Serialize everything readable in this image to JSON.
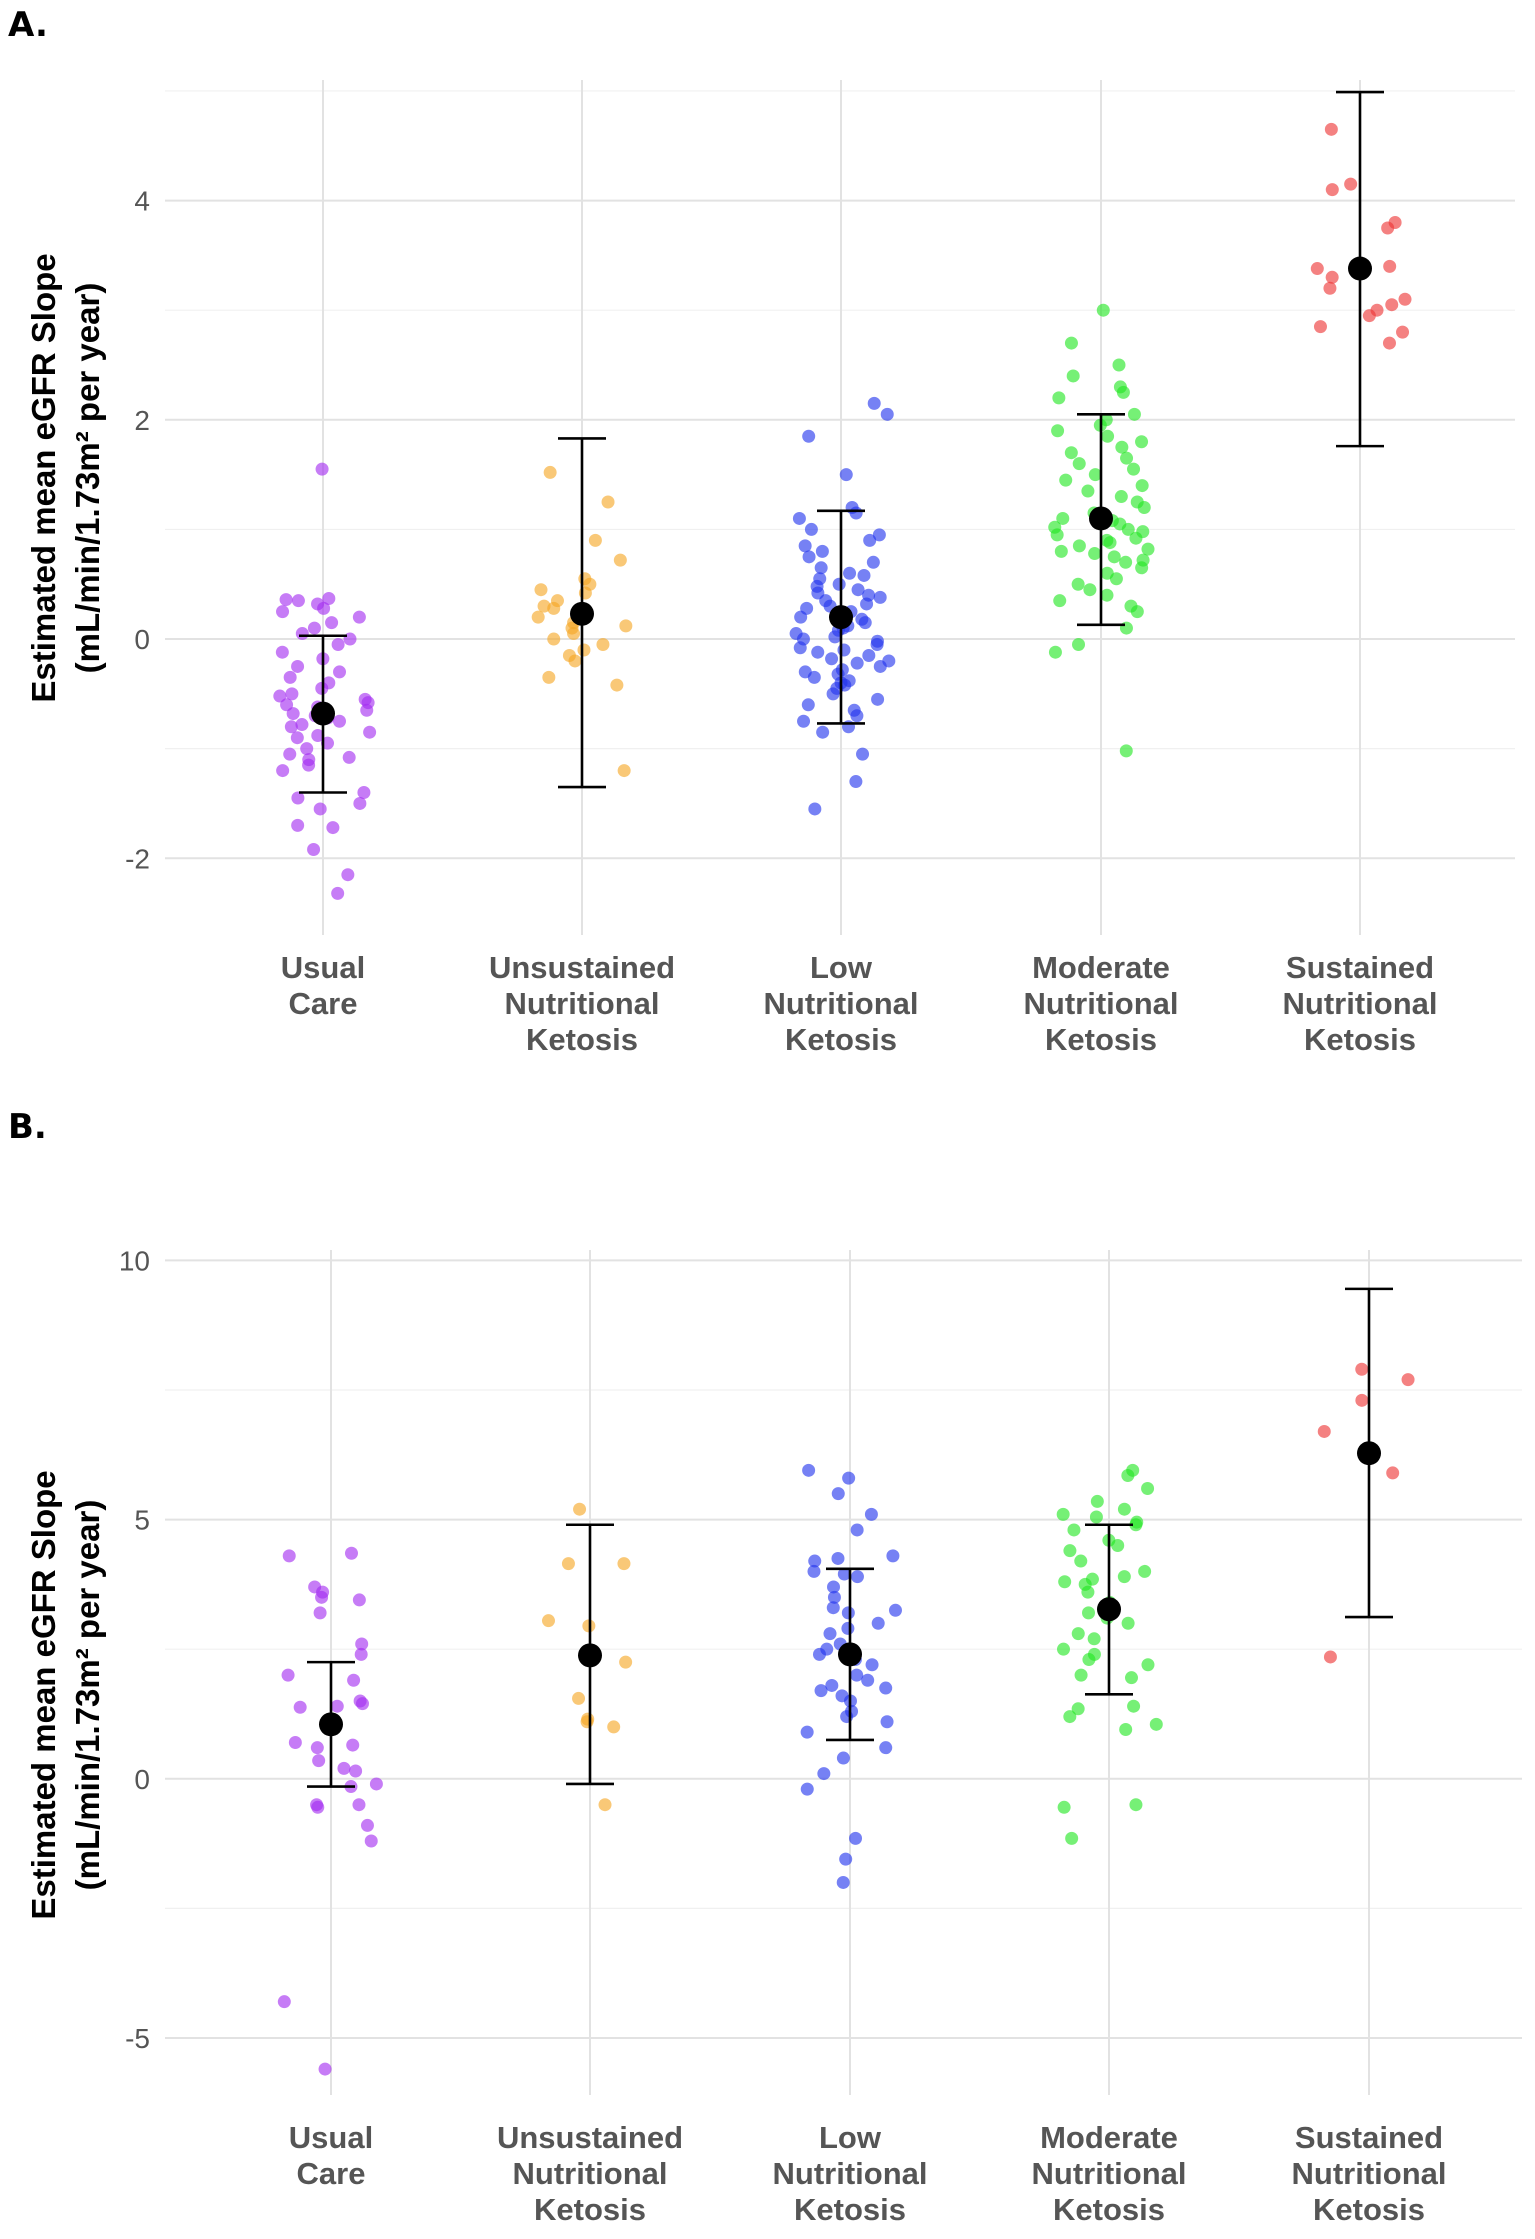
{
  "chart_data": [
    {
      "panel_label": "A.",
      "type": "scatter",
      "ylabel_line1": "Estimated mean eGFR Slope",
      "ylabel_line2": "(mL/min/1.73m² per year)",
      "ylim": [
        -2.7,
        5.1
      ],
      "yticks": [
        -2,
        0,
        2,
        4
      ],
      "ytick_labels": [
        "-2",
        "0",
        "2",
        "4"
      ],
      "categories": [
        {
          "lines": [
            "Usual",
            "Care"
          ],
          "color": "#a32cf0",
          "mean": -0.68,
          "ci": [
            -1.4,
            0.03
          ],
          "points": [
            1.55,
            0.37,
            0.36,
            0.35,
            0.32,
            0.28,
            0.25,
            0.2,
            0.15,
            0.1,
            0.05,
            0.0,
            -0.05,
            -0.12,
            -0.18,
            -0.25,
            -0.3,
            -0.35,
            -0.4,
            -0.45,
            -0.5,
            -0.52,
            -0.55,
            -0.58,
            -0.6,
            -0.62,
            -0.65,
            -0.68,
            -0.7,
            -0.72,
            -0.75,
            -0.78,
            -0.8,
            -0.85,
            -0.88,
            -0.9,
            -0.95,
            -1.0,
            -1.05,
            -1.08,
            -1.1,
            -1.15,
            -1.2,
            -1.4,
            -1.45,
            -1.5,
            -1.55,
            -1.7,
            -1.72,
            -1.92,
            -2.15,
            -2.32
          ]
        },
        {
          "lines": [
            "Unsustained",
            "Nutritional",
            "Ketosis"
          ],
          "color": "#f5a623",
          "mean": 0.23,
          "ci": [
            -1.35,
            1.83
          ],
          "points": [
            1.52,
            1.25,
            0.9,
            0.72,
            0.55,
            0.5,
            0.45,
            0.42,
            0.35,
            0.3,
            0.28,
            0.2,
            0.15,
            0.12,
            0.1,
            0.05,
            0.0,
            -0.05,
            -0.1,
            -0.15,
            -0.2,
            -0.35,
            -0.42,
            -1.2
          ]
        },
        {
          "lines": [
            "Low",
            "Nutritional",
            "Ketosis"
          ],
          "color": "#2233ee",
          "mean": 0.2,
          "ci": [
            -0.77,
            1.17
          ],
          "points": [
            2.15,
            2.05,
            1.85,
            1.5,
            1.2,
            1.15,
            1.1,
            1.0,
            0.95,
            0.9,
            0.85,
            0.8,
            0.75,
            0.7,
            0.65,
            0.6,
            0.58,
            0.55,
            0.5,
            0.48,
            0.45,
            0.42,
            0.4,
            0.38,
            0.35,
            0.32,
            0.3,
            0.28,
            0.25,
            0.22,
            0.2,
            0.18,
            0.15,
            0.12,
            0.1,
            0.08,
            0.05,
            0.02,
            0.0,
            -0.02,
            -0.05,
            -0.08,
            -0.1,
            -0.12,
            -0.15,
            -0.18,
            -0.2,
            -0.22,
            -0.25,
            -0.28,
            -0.3,
            -0.32,
            -0.35,
            -0.38,
            -0.4,
            -0.42,
            -0.45,
            -0.5,
            -0.55,
            -0.6,
            -0.65,
            -0.7,
            -0.75,
            -0.8,
            -0.85,
            -1.05,
            -1.3,
            -1.55
          ]
        },
        {
          "lines": [
            "Moderate",
            "Nutritional",
            "Ketosis"
          ],
          "color": "#22e622",
          "mean": 1.1,
          "ci": [
            0.13,
            2.05
          ],
          "points": [
            3.0,
            2.7,
            2.5,
            2.4,
            2.3,
            2.25,
            2.2,
            2.05,
            2.0,
            1.95,
            1.9,
            1.85,
            1.8,
            1.75,
            1.7,
            1.65,
            1.6,
            1.55,
            1.5,
            1.45,
            1.4,
            1.35,
            1.3,
            1.25,
            1.2,
            1.15,
            1.1,
            1.08,
            1.05,
            1.02,
            1.0,
            0.98,
            0.95,
            0.92,
            0.9,
            0.88,
            0.85,
            0.82,
            0.8,
            0.78,
            0.75,
            0.72,
            0.7,
            0.65,
            0.6,
            0.55,
            0.5,
            0.45,
            0.4,
            0.35,
            0.3,
            0.25,
            0.1,
            -0.05,
            -0.12,
            -1.02
          ]
        },
        {
          "lines": [
            "Sustained",
            "Nutritional",
            "Ketosis"
          ],
          "color": "#ee3333",
          "mean": 3.38,
          "ci": [
            1.76,
            4.99
          ],
          "points": [
            4.65,
            4.15,
            4.1,
            3.8,
            3.75,
            3.4,
            3.38,
            3.35,
            3.3,
            3.2,
            3.1,
            3.05,
            3.0,
            2.95,
            2.85,
            2.8,
            2.7
          ]
        }
      ]
    },
    {
      "panel_label": "B.",
      "type": "scatter",
      "ylabel_line1": "Estimated mean eGFR Slope",
      "ylabel_line2": "(mL/min/1.73m² per year)",
      "ylim": [
        -6.1,
        10.2
      ],
      "yticks": [
        -5,
        0,
        5,
        10
      ],
      "ytick_labels": [
        "-5",
        "0",
        "5",
        "10"
      ],
      "categories": [
        {
          "lines": [
            "Usual",
            "Care"
          ],
          "color": "#a32cf0",
          "mean": 1.05,
          "ci": [
            -0.15,
            2.25
          ],
          "points": [
            4.35,
            4.3,
            3.7,
            3.6,
            3.5,
            3.45,
            3.2,
            2.6,
            2.4,
            2.0,
            1.9,
            1.5,
            1.45,
            1.4,
            1.38,
            0.7,
            0.65,
            0.6,
            0.35,
            0.2,
            0.15,
            -0.1,
            -0.15,
            -0.5,
            -0.5,
            -0.55,
            -0.9,
            -1.2,
            -4.3,
            -5.6
          ]
        },
        {
          "lines": [
            "Unsustained",
            "Nutritional",
            "Ketosis"
          ],
          "color": "#f5a623",
          "mean": 2.38,
          "ci": [
            -0.1,
            4.9
          ],
          "points": [
            5.2,
            4.15,
            4.15,
            3.05,
            2.95,
            2.25,
            1.55,
            1.15,
            1.1,
            1.0,
            -0.5
          ]
        },
        {
          "lines": [
            "Low",
            "Nutritional",
            "Ketosis"
          ],
          "color": "#2233ee",
          "mean": 2.4,
          "ci": [
            0.75,
            4.05
          ],
          "points": [
            5.95,
            5.8,
            5.5,
            5.1,
            4.8,
            4.3,
            4.25,
            4.2,
            4.0,
            3.95,
            3.9,
            3.7,
            3.5,
            3.3,
            3.25,
            3.2,
            3.0,
            2.9,
            2.8,
            2.6,
            2.5,
            2.4,
            2.3,
            2.2,
            2.0,
            1.9,
            1.8,
            1.75,
            1.7,
            1.6,
            1.5,
            1.3,
            1.2,
            1.1,
            0.9,
            0.6,
            0.4,
            0.1,
            -0.2,
            -1.15,
            -1.55,
            -2.0
          ]
        },
        {
          "lines": [
            "Moderate",
            "Nutritional",
            "Ketosis"
          ],
          "color": "#22e622",
          "mean": 3.27,
          "ci": [
            1.63,
            4.9
          ],
          "points": [
            5.95,
            5.85,
            5.6,
            5.35,
            5.2,
            5.1,
            5.05,
            4.95,
            4.9,
            4.8,
            4.6,
            4.5,
            4.4,
            4.2,
            4.0,
            3.9,
            3.85,
            3.8,
            3.75,
            3.6,
            3.4,
            3.2,
            3.1,
            3.0,
            2.8,
            2.7,
            2.5,
            2.4,
            2.3,
            2.2,
            2.0,
            1.95,
            1.4,
            1.35,
            1.2,
            1.05,
            0.95,
            -0.5,
            -0.55,
            -1.15
          ]
        },
        {
          "lines": [
            "Sustained",
            "Nutritional",
            "Ketosis"
          ],
          "color": "#ee3333",
          "mean": 6.28,
          "ci": [
            3.12,
            9.45
          ],
          "points": [
            7.9,
            7.7,
            7.3,
            6.7,
            5.9,
            2.35
          ]
        }
      ]
    }
  ]
}
